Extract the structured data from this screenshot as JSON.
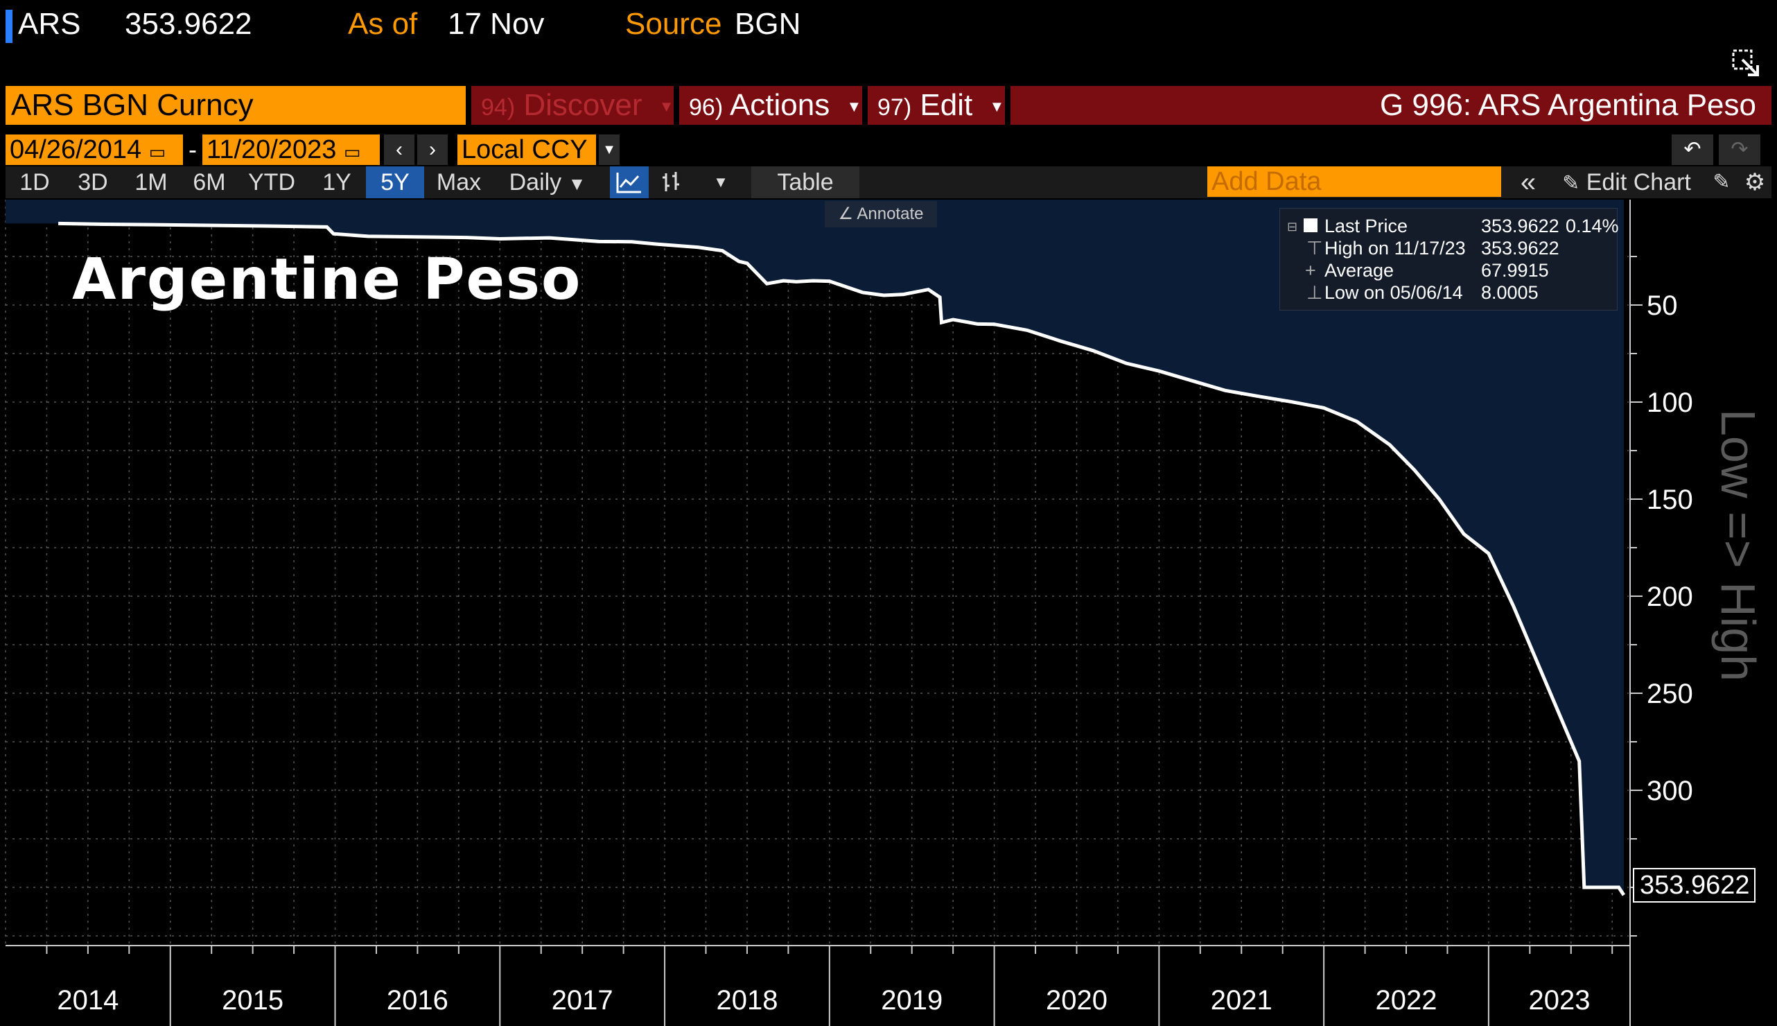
{
  "header": {
    "ticker": "ARS",
    "price": "353.9622",
    "as_of_label": "As of",
    "as_of_value": "17 Nov",
    "source_label": "Source",
    "source_value": "BGN"
  },
  "command_bar": {
    "security": "ARS BGN Curncy",
    "discover_num": "94)",
    "discover_label": "Discover",
    "actions_num": "96)",
    "actions_label": "Actions",
    "edit_num": "97)",
    "edit_label": "Edit",
    "function_title": "G 996: ARS Argentina Peso"
  },
  "date_range": {
    "start": "04/26/2014",
    "separator": "-",
    "end": "11/20/2023",
    "currency": "Local CCY"
  },
  "periods": [
    "1D",
    "3D",
    "1M",
    "6M",
    "YTD",
    "1Y",
    "5Y",
    "Max"
  ],
  "active_period": "5Y",
  "frequency": "Daily",
  "table_label": "Table",
  "add_data_placeholder": "Add Data",
  "edit_chart_label": "Edit Chart",
  "annotate_label": "Annotate",
  "legend": {
    "last_label": "Last Price",
    "last_value": "353.9622",
    "last_change": "0.14%",
    "high_label": "High on 11/17/23",
    "high_value": "353.9622",
    "avg_label": "Average",
    "avg_value": "67.9915",
    "low_label": "Low on 05/06/14",
    "low_value": "8.0005"
  },
  "chart_title": "Argentine Peso",
  "side_label": "Low => High",
  "last_price_flag": "353.9622",
  "colors": {
    "area_fill": "#0b1d36",
    "line": "#ffffff",
    "accent_orange": "#ff9900",
    "command_red": "#7a0d12",
    "active_blue": "#1f5aa8"
  },
  "chart_data": {
    "type": "area",
    "title": "Argentine Peso",
    "y_axis_inverted": true,
    "y_axis_side": "right",
    "ylim": [
      0,
      380
    ],
    "y_ticks": [
      50,
      100,
      150,
      200,
      250,
      300
    ],
    "x_ticks": [
      "2014",
      "2015",
      "2016",
      "2017",
      "2018",
      "2019",
      "2020",
      "2021",
      "2022",
      "2023"
    ],
    "grid": true,
    "series": [
      {
        "name": "Last Price",
        "points": [
          [
            2014.32,
            8.0
          ],
          [
            2014.6,
            8.4
          ],
          [
            2014.9,
            8.6
          ],
          [
            2015.3,
            9.0
          ],
          [
            2015.65,
            9.4
          ],
          [
            2015.95,
            9.8
          ],
          [
            2015.99,
            13.3
          ],
          [
            2016.2,
            14.6
          ],
          [
            2016.5,
            14.9
          ],
          [
            2016.8,
            15.2
          ],
          [
            2017.0,
            15.9
          ],
          [
            2017.3,
            15.4
          ],
          [
            2017.6,
            17.3
          ],
          [
            2017.8,
            17.4
          ],
          [
            2017.95,
            18.6
          ],
          [
            2018.2,
            20.2
          ],
          [
            2018.35,
            22.0
          ],
          [
            2018.45,
            27.5
          ],
          [
            2018.5,
            28.5
          ],
          [
            2018.62,
            39.0
          ],
          [
            2018.72,
            37.5
          ],
          [
            2018.8,
            38.0
          ],
          [
            2018.9,
            37.5
          ],
          [
            2019.0,
            37.7
          ],
          [
            2019.2,
            43.5
          ],
          [
            2019.33,
            45.0
          ],
          [
            2019.45,
            44.5
          ],
          [
            2019.6,
            42.0
          ],
          [
            2019.67,
            46.0
          ],
          [
            2019.68,
            59.0
          ],
          [
            2019.75,
            57.5
          ],
          [
            2019.9,
            59.8
          ],
          [
            2020.0,
            59.9
          ],
          [
            2020.2,
            63.0
          ],
          [
            2020.4,
            68.5
          ],
          [
            2020.6,
            73.5
          ],
          [
            2020.8,
            80.0
          ],
          [
            2021.0,
            84.0
          ],
          [
            2021.2,
            89.0
          ],
          [
            2021.4,
            94.0
          ],
          [
            2021.6,
            97.0
          ],
          [
            2021.8,
            99.8
          ],
          [
            2022.0,
            103.0
          ],
          [
            2022.2,
            110.0
          ],
          [
            2022.4,
            122.0
          ],
          [
            2022.55,
            135.0
          ],
          [
            2022.7,
            150.0
          ],
          [
            2022.85,
            168.0
          ],
          [
            2023.0,
            178.0
          ],
          [
            2023.15,
            205.0
          ],
          [
            2023.3,
            235.0
          ],
          [
            2023.45,
            265.0
          ],
          [
            2023.55,
            285.0
          ],
          [
            2023.58,
            350.0
          ],
          [
            2023.7,
            350.0
          ],
          [
            2023.79,
            350.0
          ],
          [
            2023.82,
            353.96
          ]
        ]
      }
    ]
  }
}
